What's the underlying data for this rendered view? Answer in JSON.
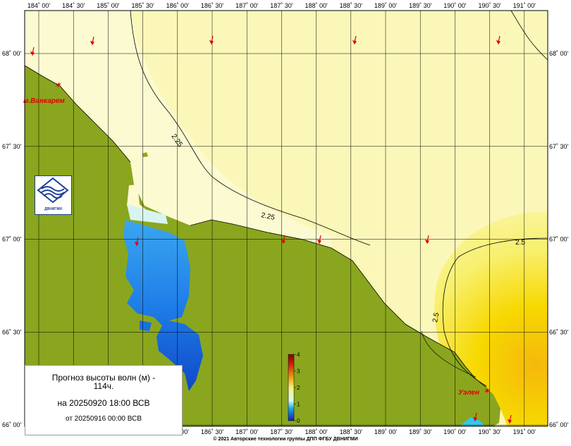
{
  "map": {
    "lon_labels": [
      "184˚ 00'",
      "184˚ 30'",
      "185˚ 00'",
      "185˚ 30'",
      "186˚ 00'",
      "186˚ 30'",
      "187˚ 00'",
      "187˚ 30'",
      "188˚ 00'",
      "188˚ 30'",
      "189˚ 00'",
      "189˚ 30'",
      "190˚ 00'",
      "190˚ 30'",
      "191˚ 00'"
    ],
    "lat_labels": [
      "68˚ 00'",
      "67˚ 30'",
      "67˚ 00'",
      "66˚ 30'",
      "66˚ 00'"
    ],
    "isolines": [
      "2.25",
      "2.25",
      "2.5",
      "2.5"
    ],
    "places": [
      "м.Ванкарем",
      "Уэлен"
    ],
    "colorbar_ticks": [
      "4",
      "3",
      "2",
      "1",
      "0"
    ],
    "colors": {
      "land": "#8aa61e",
      "sea_low": "#fafac0",
      "sea_mid": "#f7f28a",
      "sea_high": "#f5c214",
      "lagoon_blue": "#1a6fe0",
      "arrow": "#e00000"
    }
  },
  "info": {
    "line1": "Прогноз высоты волн (м) -",
    "line2": "114ч.",
    "line3": "на 20250920 18:00 ВСВ",
    "line4": "от 20250916 00:00 ВСВ"
  },
  "logo": {
    "text": "ДВНИГМИ"
  },
  "footer": {
    "copyright": "© 2021 Авторские технологии группы ДПП ФГБУ ДВНИГМИ"
  }
}
